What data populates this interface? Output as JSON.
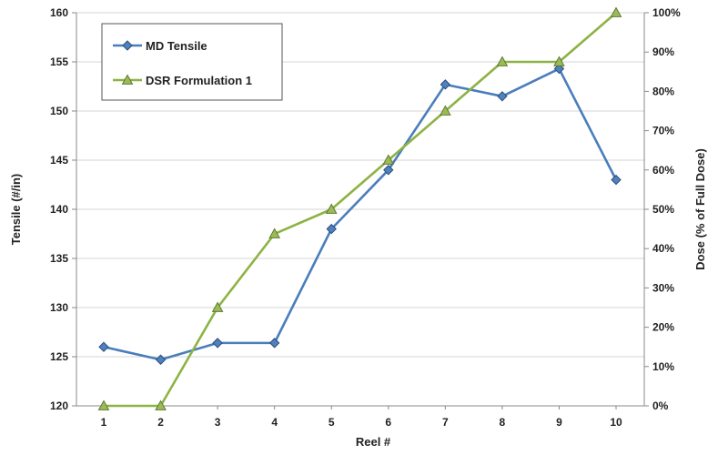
{
  "chart_data": {
    "type": "line",
    "xlabel": "Reel #",
    "ylabel": "Tensile (#/in)",
    "y2label": "Dose (% of Full Dose)",
    "categories": [
      "1",
      "2",
      "3",
      "4",
      "5",
      "6",
      "7",
      "8",
      "9",
      "10"
    ],
    "ylim": [
      120,
      160
    ],
    "y_ticks": [
      "120",
      "125",
      "130",
      "135",
      "140",
      "145",
      "150",
      "155",
      "160"
    ],
    "y2lim": [
      0,
      100
    ],
    "y2_ticks": [
      "0%",
      "10%",
      "20%",
      "30%",
      "40%",
      "50%",
      "60%",
      "70%",
      "80%",
      "90%",
      "100%"
    ],
    "grid": true,
    "legend_position": "top-left",
    "series": [
      {
        "name": "MD Tensile",
        "axis": "left",
        "marker": "diamond",
        "color": "#4a7ebb",
        "marker_fill": "#4f81bd",
        "marker_stroke": "#2a4d7a",
        "values": [
          126,
          124.7,
          126.4,
          126.4,
          138,
          144,
          152.7,
          151.5,
          154.3,
          143
        ]
      },
      {
        "name": "DSR Formulation 1",
        "axis": "right",
        "marker": "triangle",
        "color": "#8db344",
        "marker_fill": "#9bbb59",
        "marker_stroke": "#5f7a2e",
        "values": [
          0,
          0,
          25,
          43.75,
          50,
          62.5,
          75,
          87.5,
          87.5,
          100
        ]
      }
    ]
  }
}
